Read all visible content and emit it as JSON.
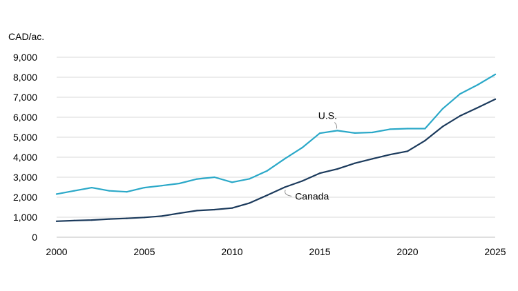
{
  "chart_data": {
    "type": "line",
    "ylabel": "CAD/ac.",
    "ylim": [
      0,
      9000
    ],
    "xlim": [
      2000,
      2025
    ],
    "yticks": [
      0,
      1000,
      2000,
      3000,
      4000,
      5000,
      6000,
      7000,
      8000,
      9000
    ],
    "ytick_labels": [
      "0",
      "1,000",
      "2,000",
      "3,000",
      "4,000",
      "5,000",
      "6,000",
      "7,000",
      "8,000",
      "9,000"
    ],
    "xticks": [
      2000,
      2005,
      2010,
      2015,
      2020,
      2025
    ],
    "xtick_labels": [
      "2000",
      "2005",
      "2010",
      "2015",
      "2020",
      "2025"
    ],
    "grid": true,
    "x": [
      2000,
      2001,
      2002,
      2003,
      2004,
      2005,
      2006,
      2007,
      2008,
      2009,
      2010,
      2011,
      2012,
      2013,
      2014,
      2015,
      2016,
      2017,
      2018,
      2019,
      2020,
      2021,
      2022,
      2023,
      2024,
      2025
    ],
    "series": [
      {
        "name": "U.S.",
        "color": "#2aa8c8",
        "values": [
          2160,
          2320,
          2480,
          2320,
          2270,
          2480,
          2580,
          2690,
          2910,
          3000,
          2750,
          2920,
          3320,
          3920,
          4480,
          5200,
          5330,
          5210,
          5240,
          5400,
          5430,
          5430,
          6420,
          7170,
          7620,
          8140
        ]
      },
      {
        "name": "Canada",
        "color": "#1b3a5c",
        "values": [
          800,
          830,
          860,
          910,
          940,
          990,
          1060,
          1200,
          1330,
          1380,
          1460,
          1710,
          2100,
          2500,
          2810,
          3200,
          3410,
          3700,
          3920,
          4130,
          4300,
          4830,
          5530,
          6070,
          6480,
          6900
        ]
      }
    ]
  }
}
